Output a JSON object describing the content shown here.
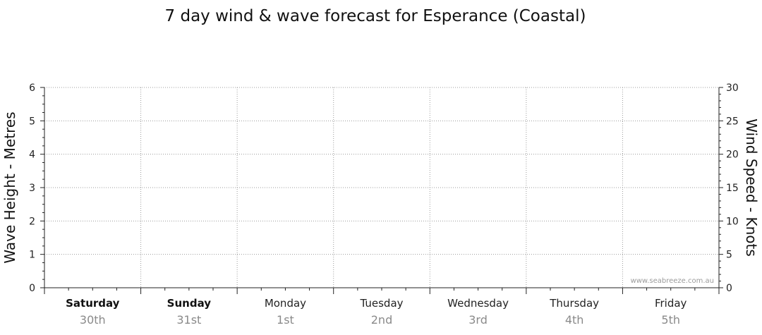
{
  "chart_data": {
    "type": "line",
    "title": "7 day wind & wave forecast for Esperance (Coastal)",
    "ylabel": "Wave Height - Metres",
    "y2label": "Wind Speed - Knots",
    "ylim": [
      0,
      6
    ],
    "y2lim": [
      0,
      30
    ],
    "yticks": [
      0,
      1,
      2,
      3,
      4,
      5,
      6
    ],
    "y2ticks": [
      0,
      5,
      10,
      15,
      20,
      25,
      30
    ],
    "grid": true,
    "days": [
      {
        "day": "Saturday",
        "date": "30th",
        "bold": true
      },
      {
        "day": "Sunday",
        "date": "31st",
        "bold": true
      },
      {
        "day": "Monday",
        "date": "1st",
        "bold": false
      },
      {
        "day": "Tuesday",
        "date": "2nd",
        "bold": false
      },
      {
        "day": "Wednesday",
        "date": "3rd",
        "bold": false
      },
      {
        "day": "Thursday",
        "date": "4th",
        "bold": false
      },
      {
        "day": "Friday",
        "date": "5th",
        "bold": false
      }
    ],
    "series": [],
    "watermark": "www.seabreeze.com.au"
  }
}
